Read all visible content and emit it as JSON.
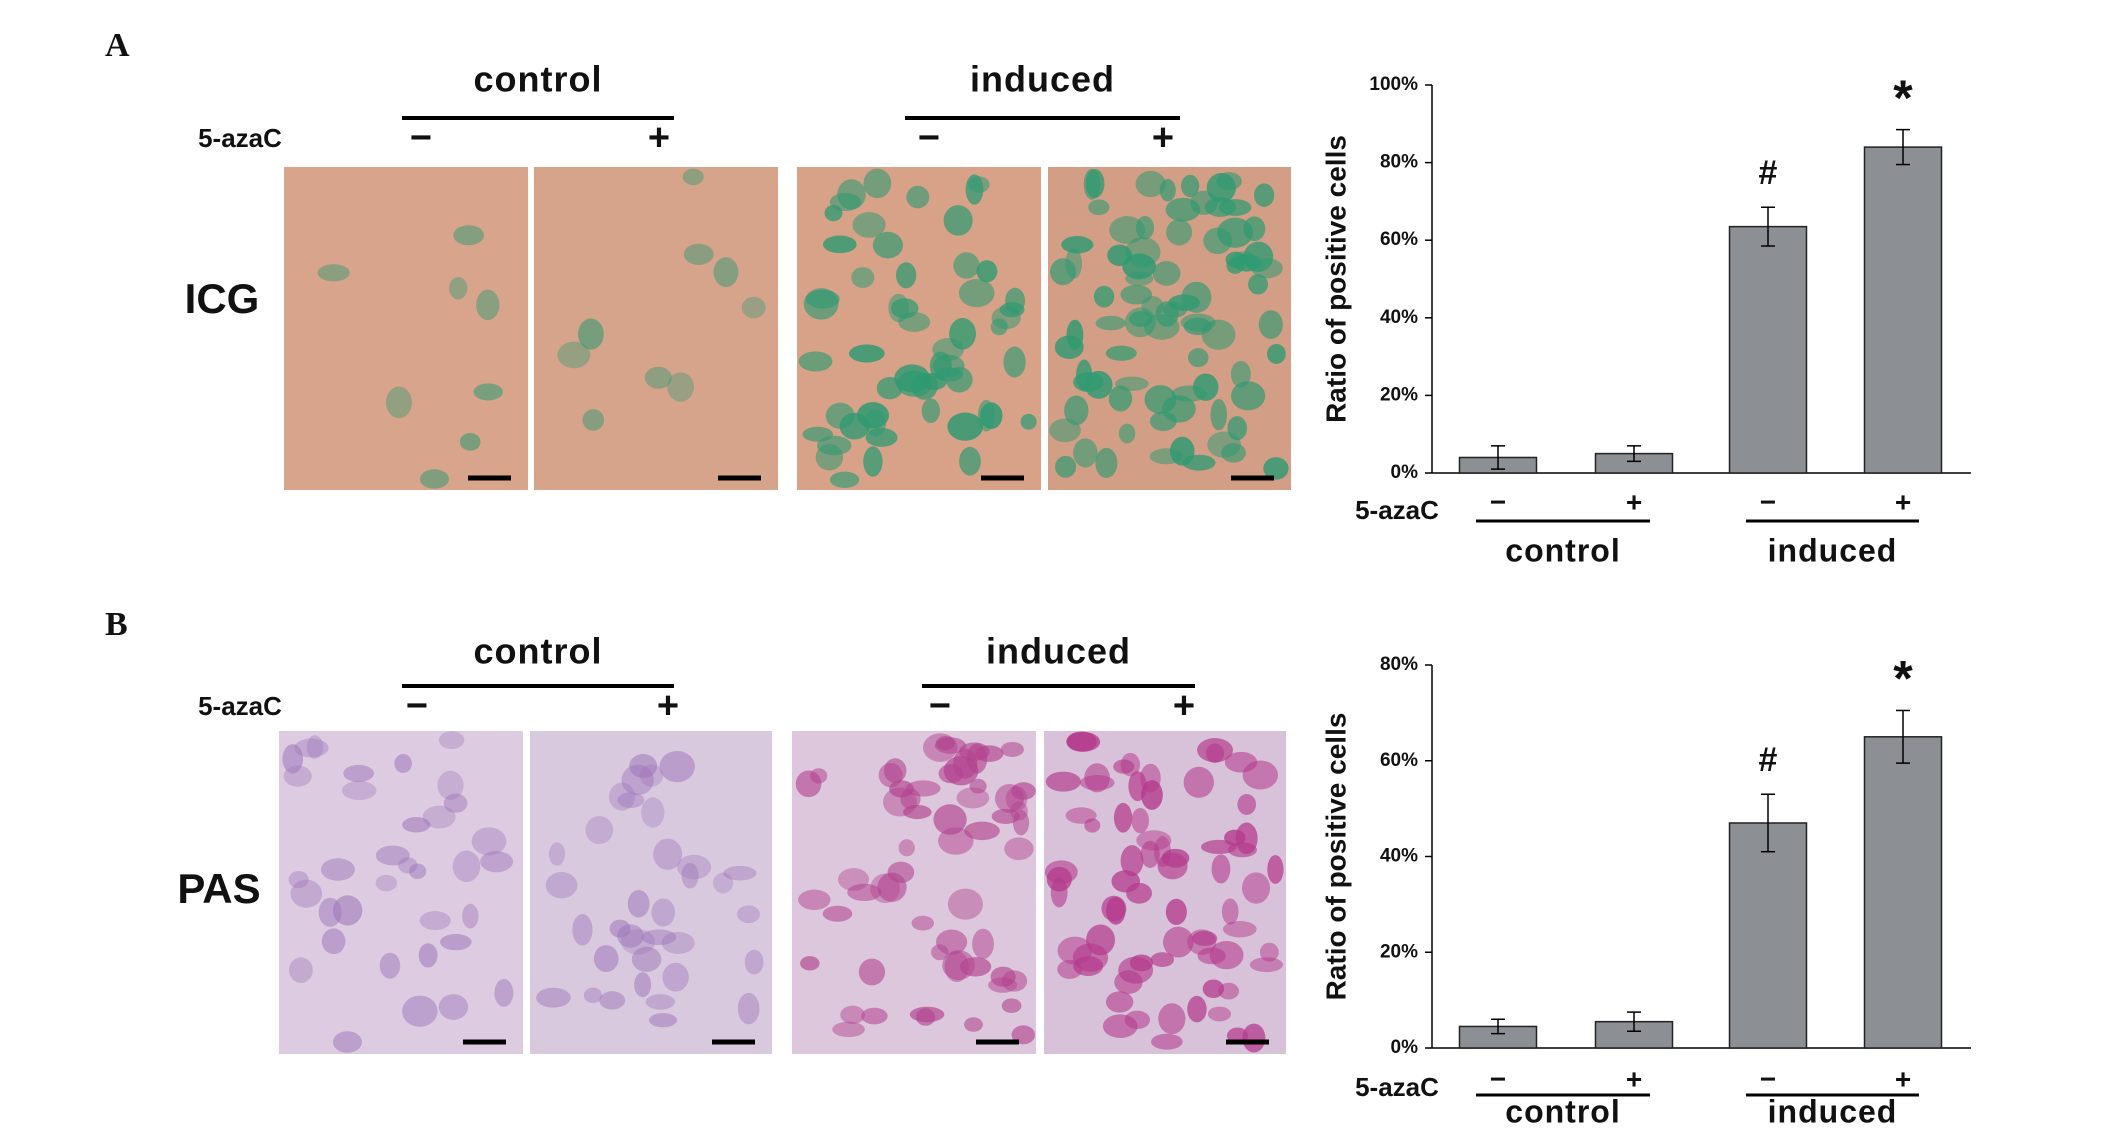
{
  "panels": [
    {
      "label": "A",
      "stain": "ICG",
      "groups": [
        "control",
        "induced"
      ],
      "treatment": "5-azaC",
      "signs": [
        "−",
        "+"
      ]
    },
    {
      "label": "B",
      "stain": "PAS",
      "groups": [
        "control",
        "induced"
      ],
      "treatment": "5-azaC",
      "signs": [
        "−",
        "+"
      ]
    }
  ],
  "chart_data": [
    {
      "type": "bar",
      "ylabel": "Ratio of positive cells",
      "xlabel": "5-azaC",
      "categories": [
        "−",
        "+",
        "−",
        "+"
      ],
      "groups": [
        "control",
        "induced"
      ],
      "values": [
        4,
        5,
        63.5,
        84
      ],
      "errors": [
        3,
        2,
        5,
        4.5
      ],
      "value_annotations": [
        null,
        null,
        "#",
        "*"
      ],
      "color": "#8c9094",
      "ylim": [
        0,
        100
      ],
      "yticks": [
        {
          "value": 0,
          "label": "0%"
        },
        {
          "value": 20,
          "label": "20%"
        },
        {
          "value": 40,
          "label": "40%"
        },
        {
          "value": 60,
          "label": "60%"
        },
        {
          "value": 80,
          "label": "80%"
        },
        {
          "value": 100,
          "label": "100%"
        }
      ]
    },
    {
      "type": "bar",
      "ylabel": "Ratio of positive cells",
      "xlabel": "5-azaC",
      "categories": [
        "−",
        "+",
        "−",
        "+"
      ],
      "groups": [
        "control",
        "induced"
      ],
      "values": [
        4.5,
        5.5,
        47,
        65
      ],
      "errors": [
        1.5,
        2,
        6,
        5.5
      ],
      "value_annotations": [
        null,
        null,
        "#",
        "*"
      ],
      "color": "#8c9094",
      "ylim": [
        0,
        80
      ],
      "yticks": [
        {
          "value": 0,
          "label": "0%"
        },
        {
          "value": 20,
          "label": "20%"
        },
        {
          "value": 40,
          "label": "40%"
        },
        {
          "value": 60,
          "label": "60%"
        },
        {
          "value": 80,
          "label": "80%"
        }
      ]
    }
  ]
}
